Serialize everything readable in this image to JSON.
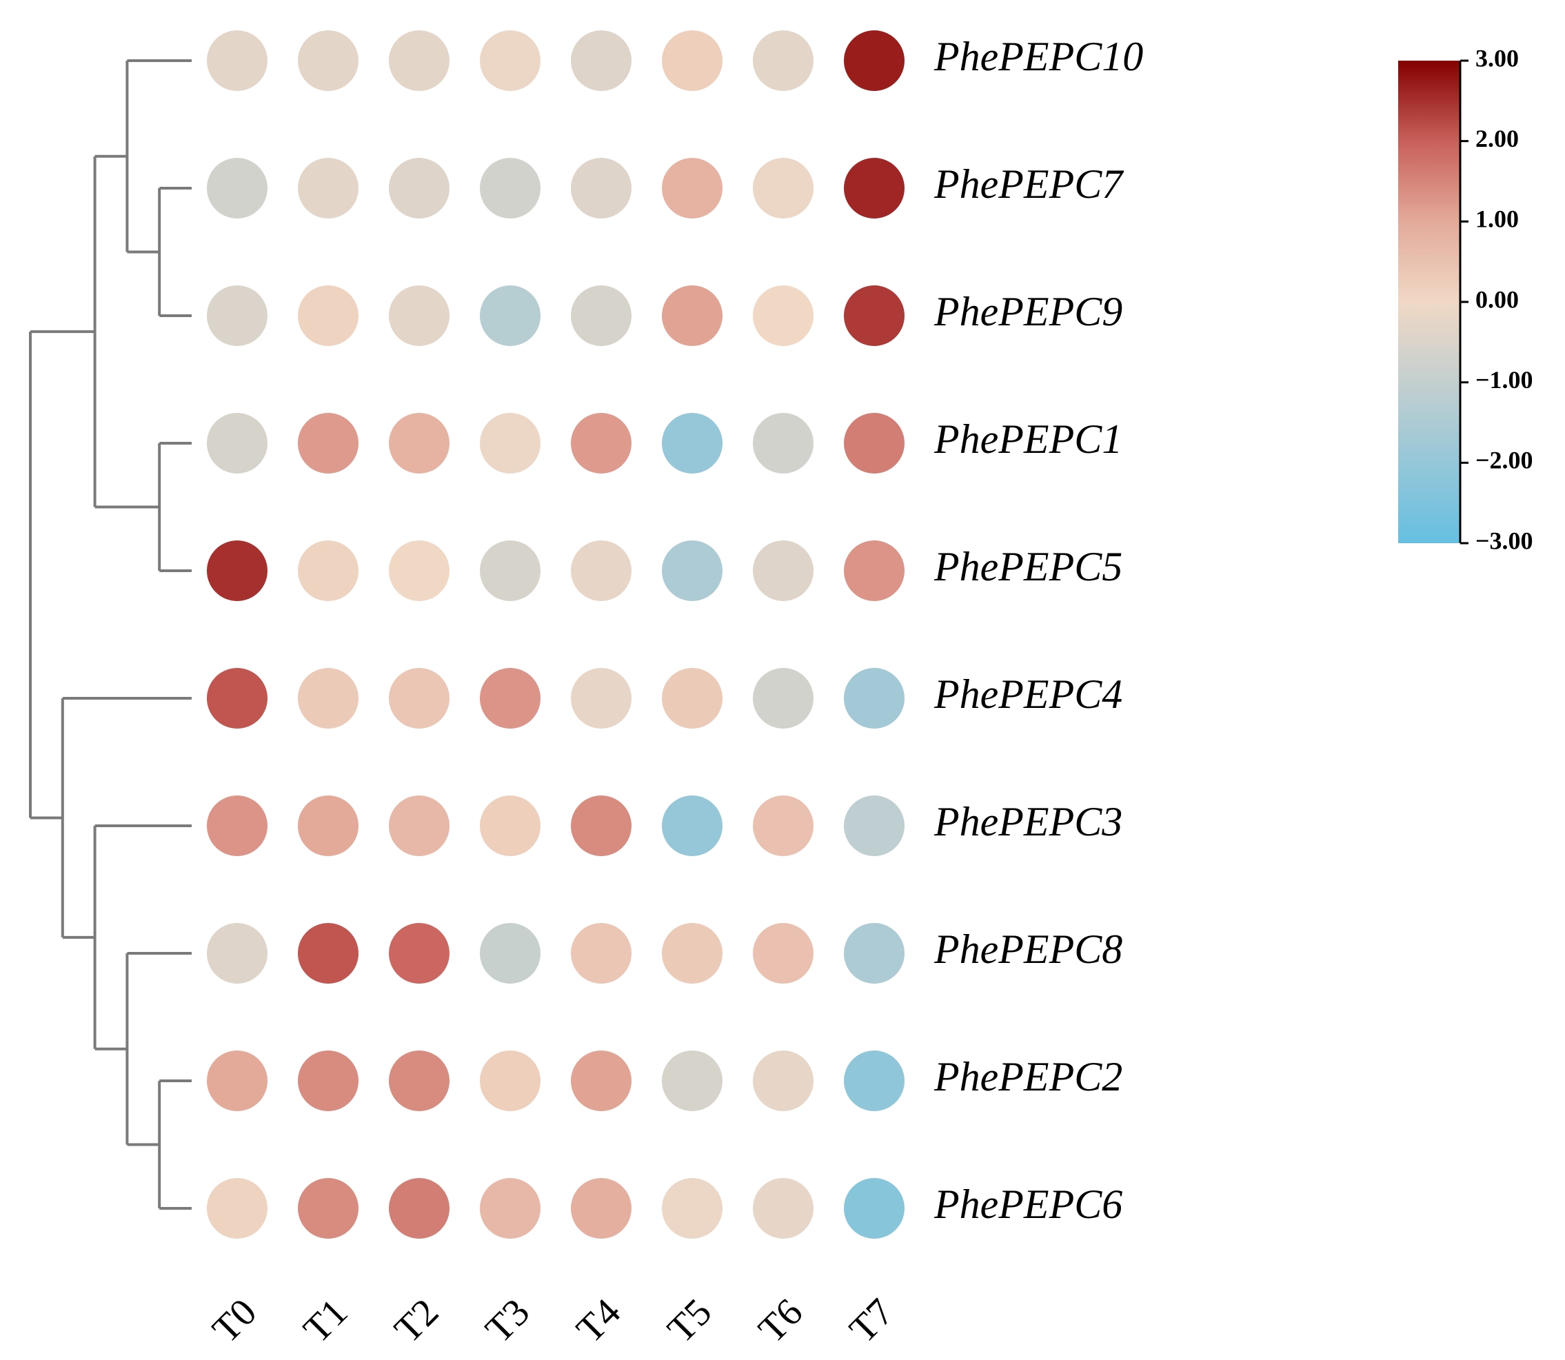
{
  "chart_data": {
    "type": "heatmap",
    "title": "",
    "xlabel": "",
    "ylabel": "",
    "columns": [
      "T0",
      "T1",
      "T2",
      "T3",
      "T4",
      "T5",
      "T6",
      "T7"
    ],
    "rows": [
      "PhePEPC10",
      "PhePEPC7",
      "PhePEPC9",
      "PhePEPC1",
      "PhePEPC5",
      "PhePEPC4",
      "PhePEPC3",
      "PhePEPC8",
      "PhePEPC2",
      "PhePEPC6"
    ],
    "values": [
      [
        -0.3,
        -0.3,
        -0.3,
        -0.1,
        -0.4,
        0.2,
        -0.3,
        2.7
      ],
      [
        -0.7,
        -0.3,
        -0.4,
        -0.7,
        -0.4,
        0.8,
        -0.1,
        2.6
      ],
      [
        -0.5,
        0.1,
        -0.3,
        -1.3,
        -0.6,
        1.1,
        0.0,
        2.4
      ],
      [
        -0.6,
        1.2,
        0.8,
        -0.1,
        1.2,
        -2.0,
        -0.7,
        1.6
      ],
      [
        2.5,
        0.1,
        0.0,
        -0.6,
        -0.2,
        -1.5,
        -0.4,
        1.3
      ],
      [
        2.1,
        0.3,
        0.4,
        1.3,
        -0.2,
        0.3,
        -0.7,
        -1.7
      ],
      [
        1.3,
        1.0,
        0.7,
        0.2,
        1.4,
        -2.0,
        0.5,
        -1.1
      ],
      [
        -0.4,
        2.1,
        1.9,
        -0.9,
        0.4,
        0.3,
        0.5,
        -1.5
      ],
      [
        1.0,
        1.4,
        1.4,
        0.2,
        1.1,
        -0.6,
        -0.2,
        -2.1
      ],
      [
        0.1,
        1.4,
        1.6,
        0.7,
        0.9,
        -0.1,
        -0.2,
        -2.3
      ]
    ],
    "dendrogram": {
      "children": [
        {
          "children": [
            {
              "children": [
                {
                  "leaf": "PhePEPC10"
                },
                {
                  "children": [
                    {
                      "leaf": "PhePEPC7"
                    },
                    {
                      "leaf": "PhePEPC9"
                    }
                  ]
                }
              ]
            },
            {
              "children": [
                {
                  "leaf": "PhePEPC1"
                },
                {
                  "leaf": "PhePEPC5"
                }
              ]
            }
          ]
        },
        {
          "children": [
            {
              "leaf": "PhePEPC4"
            },
            {
              "children": [
                {
                  "leaf": "PhePEPC3"
                },
                {
                  "children": [
                    {
                      "leaf": "PhePEPC8"
                    },
                    {
                      "children": [
                        {
                          "leaf": "PhePEPC2"
                        },
                        {
                          "leaf": "PhePEPC6"
                        }
                      ]
                    }
                  ]
                }
              ]
            }
          ]
        }
      ]
    },
    "colorscale": {
      "min": -3,
      "max": 3,
      "colors": [
        {
          "value": -3,
          "color": "#66bfe2"
        },
        {
          "value": -1,
          "color": "#c4cfcf"
        },
        {
          "value": 0,
          "color": "#f0d8c5"
        },
        {
          "value": 1,
          "color": "#e3aa9a"
        },
        {
          "value": 2,
          "color": "#c8605a"
        },
        {
          "value": 3,
          "color": "#840000"
        }
      ],
      "ticks": [
        {
          "value": 3,
          "label": "3.00"
        },
        {
          "value": 2,
          "label": "2.00"
        },
        {
          "value": 1,
          "label": "1.00"
        },
        {
          "value": 0,
          "label": "0.00"
        },
        {
          "value": -1,
          "label": "−1.00"
        },
        {
          "value": -2,
          "label": "−2.00"
        },
        {
          "value": -3,
          "label": "−3.00"
        }
      ]
    },
    "grid": false,
    "legend_position": "top-right",
    "dendrogram_color": "#7a7a7a"
  }
}
